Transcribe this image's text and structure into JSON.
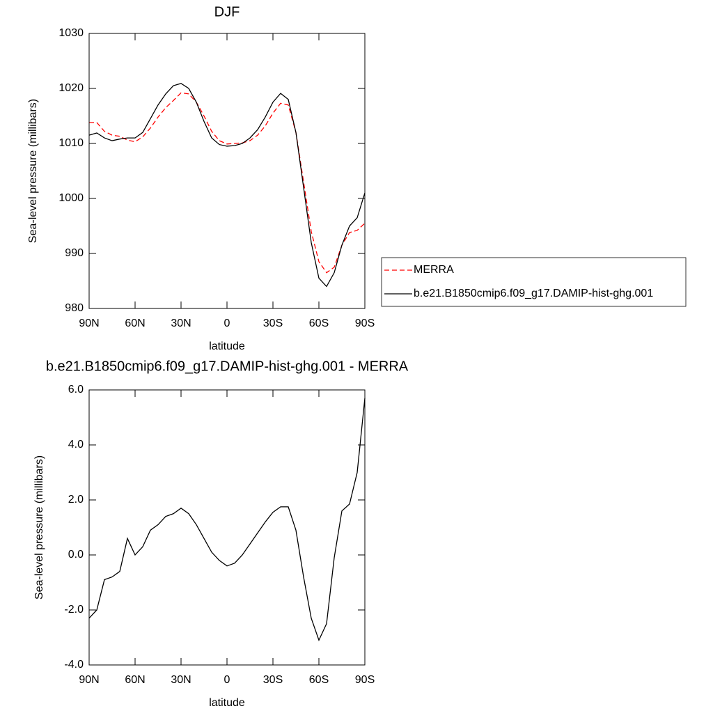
{
  "chart_data": [
    {
      "type": "line",
      "title": "DJF",
      "x_label": "latitude",
      "y_label": "Sea-level pressure (millibars)",
      "x": [
        90,
        85,
        80,
        75,
        70,
        65,
        60,
        55,
        50,
        45,
        40,
        35,
        30,
        25,
        20,
        15,
        10,
        5,
        0,
        -5,
        -10,
        -15,
        -20,
        -25,
        -30,
        -35,
        -40,
        -45,
        -50,
        -55,
        -60,
        -65,
        -70,
        -75,
        -80,
        -85,
        -90
      ],
      "series": [
        {
          "name": "MERRA",
          "color": "#ff0000",
          "line_style": "dashed",
          "values": [
            1013.8,
            1013.8,
            1012.2,
            1011.5,
            1011.3,
            1010.6,
            1010.3,
            1011.2,
            1012.8,
            1014.8,
            1016.5,
            1017.8,
            1019.2,
            1019.0,
            1017.5,
            1015.0,
            1012.2,
            1010.5,
            1009.9,
            1010.0,
            1010.1,
            1010.5,
            1011.5,
            1013.2,
            1015.5,
            1017.3,
            1017.0,
            1012.0,
            1003.0,
            994.0,
            988.5,
            986.5,
            987.5,
            991.5,
            993.8,
            994.2,
            995.5
          ]
        },
        {
          "name": "b.e21.B1850cmip6.f09_g17.DAMIP-hist-ghg.001",
          "color": "#000000",
          "line_style": "solid",
          "values": [
            1011.5,
            1011.9,
            1011.0,
            1010.5,
            1010.8,
            1011.0,
            1011.0,
            1012.0,
            1014.5,
            1017.0,
            1019.0,
            1020.5,
            1020.9,
            1020.0,
            1017.5,
            1014.0,
            1011.0,
            1009.8,
            1009.5,
            1009.6,
            1010.0,
            1011.0,
            1012.5,
            1014.8,
            1017.5,
            1019.1,
            1018.0,
            1012.0,
            1002.0,
            992.0,
            985.5,
            984.0,
            986.5,
            991.5,
            995.0,
            996.5,
            1001.0
          ]
        }
      ],
      "xlim": [
        90,
        -90
      ],
      "xticks": [
        {
          "value": 90,
          "label": "90N"
        },
        {
          "value": 60,
          "label": "60N"
        },
        {
          "value": 30,
          "label": "30N"
        },
        0,
        {
          "value": -30,
          "label": "30S"
        },
        {
          "value": -60,
          "label": "60S"
        },
        {
          "value": -90,
          "label": "90S"
        }
      ],
      "ylim": [
        980,
        1030
      ],
      "yticks": [
        980,
        990,
        1000,
        1010,
        1020,
        1030
      ],
      "legend": "right"
    },
    {
      "type": "line",
      "title": "b.e21.B1850cmip6.f09_g17.DAMIP-hist-ghg.001 - MERRA",
      "x_label": "latitude",
      "y_label": "Sea-level pressure (millibars)",
      "x": [
        90,
        85,
        80,
        75,
        70,
        65,
        60,
        55,
        50,
        45,
        40,
        35,
        30,
        25,
        20,
        15,
        10,
        5,
        0,
        -5,
        -10,
        -15,
        -20,
        -25,
        -30,
        -35,
        -40,
        -45,
        -50,
        -55,
        -60,
        -65,
        -70,
        -75,
        -80,
        -85,
        -90
      ],
      "series": [
        {
          "color": "#000000",
          "line_style": "solid",
          "values": [
            -2.3,
            -2.0,
            -0.9,
            -0.8,
            -0.6,
            0.6,
            0.0,
            0.3,
            0.9,
            1.1,
            1.4,
            1.5,
            1.7,
            1.5,
            1.1,
            0.6,
            0.1,
            -0.2,
            -0.4,
            -0.3,
            0.0,
            0.4,
            0.8,
            1.2,
            1.55,
            1.75,
            1.75,
            0.9,
            -0.8,
            -2.3,
            -3.1,
            -2.5,
            -0.1,
            1.6,
            1.85,
            3.0,
            5.7
          ]
        }
      ],
      "xlim": [
        90,
        -90
      ],
      "xticks": [
        {
          "value": 90,
          "label": "90N"
        },
        {
          "value": 60,
          "label": "60N"
        },
        {
          "value": 30,
          "label": "30N"
        },
        0,
        {
          "value": -30,
          "label": "30S"
        },
        {
          "value": -60,
          "label": "60S"
        },
        {
          "value": -90,
          "label": "90S"
        }
      ],
      "ylim": [
        -4,
        6
      ],
      "yticks": [
        {
          "value": -4,
          "label": "-4.0"
        },
        {
          "value": -2,
          "label": "-2.0"
        },
        {
          "value": 0,
          "label": "0.0"
        },
        {
          "value": 2,
          "label": "2.0"
        },
        {
          "value": 4,
          "label": "4.0"
        },
        {
          "value": 6,
          "label": "6.0"
        }
      ]
    }
  ]
}
